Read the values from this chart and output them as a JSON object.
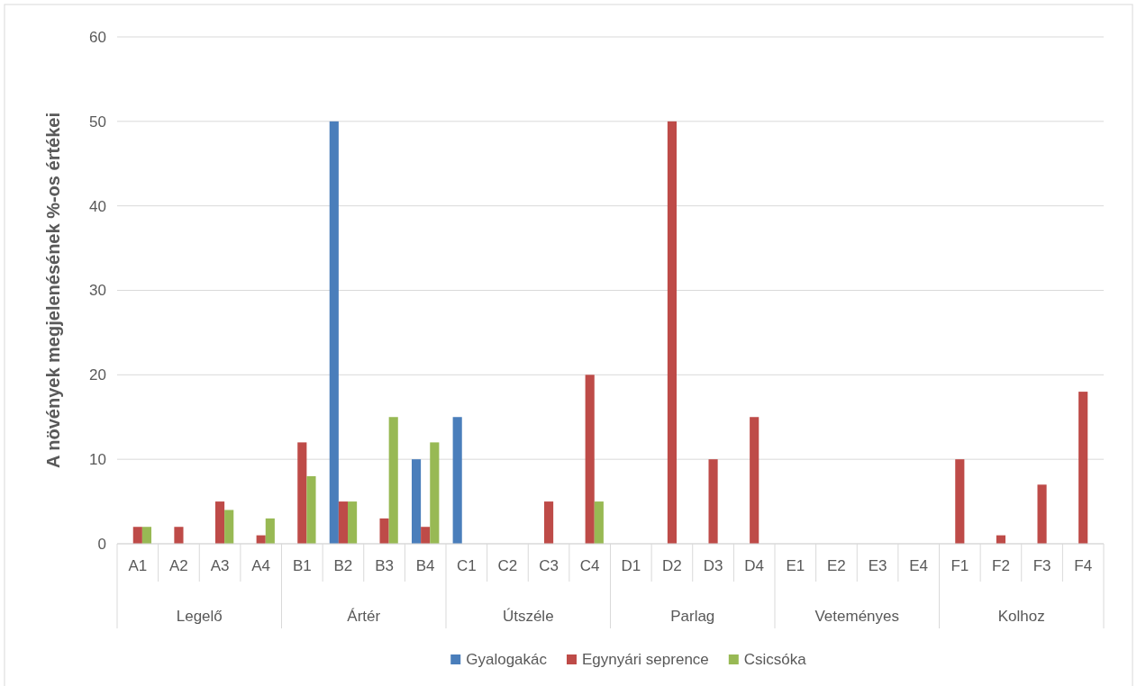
{
  "chart_data": {
    "type": "bar",
    "ylabel": "A növények megjelenésének %-os értékei",
    "categories": [
      "A1",
      "A2",
      "A3",
      "A4",
      "B1",
      "B2",
      "B3",
      "B4",
      "C1",
      "C2",
      "C3",
      "C4",
      "D1",
      "D2",
      "D3",
      "D4",
      "E1",
      "E2",
      "E3",
      "E4",
      "F1",
      "F2",
      "F3",
      "F4"
    ],
    "annotations": [
      "Legelő",
      "Ártér",
      "Útszéle",
      "Parlag",
      "Veteményes",
      "Kolhoz"
    ],
    "series": [
      {
        "name": "Gyalogakác",
        "color": "#4a7ebb",
        "values": [
          0,
          0,
          0,
          0,
          0,
          50,
          0,
          10,
          15,
          0,
          0,
          0,
          0,
          0,
          0,
          0,
          0,
          0,
          0,
          0,
          0,
          0,
          0,
          0
        ]
      },
      {
        "name": "Egynyári seprence",
        "color": "#be4b48",
        "values": [
          2,
          2,
          5,
          1,
          12,
          5,
          3,
          2,
          0,
          0,
          5,
          20,
          0,
          50,
          10,
          15,
          0,
          0,
          0,
          0,
          10,
          1,
          7,
          18
        ]
      },
      {
        "name": "Csicsóka",
        "color": "#98b954",
        "values": [
          2,
          0,
          4,
          3,
          8,
          5,
          15,
          12,
          0,
          0,
          0,
          5,
          0,
          0,
          0,
          0,
          0,
          0,
          0,
          0,
          0,
          0,
          0,
          0
        ]
      }
    ],
    "ylim": [
      0,
      60
    ],
    "yticks": [
      0,
      10,
      20,
      30,
      40,
      50,
      60
    ],
    "grid": "y",
    "legend": "bottom"
  }
}
